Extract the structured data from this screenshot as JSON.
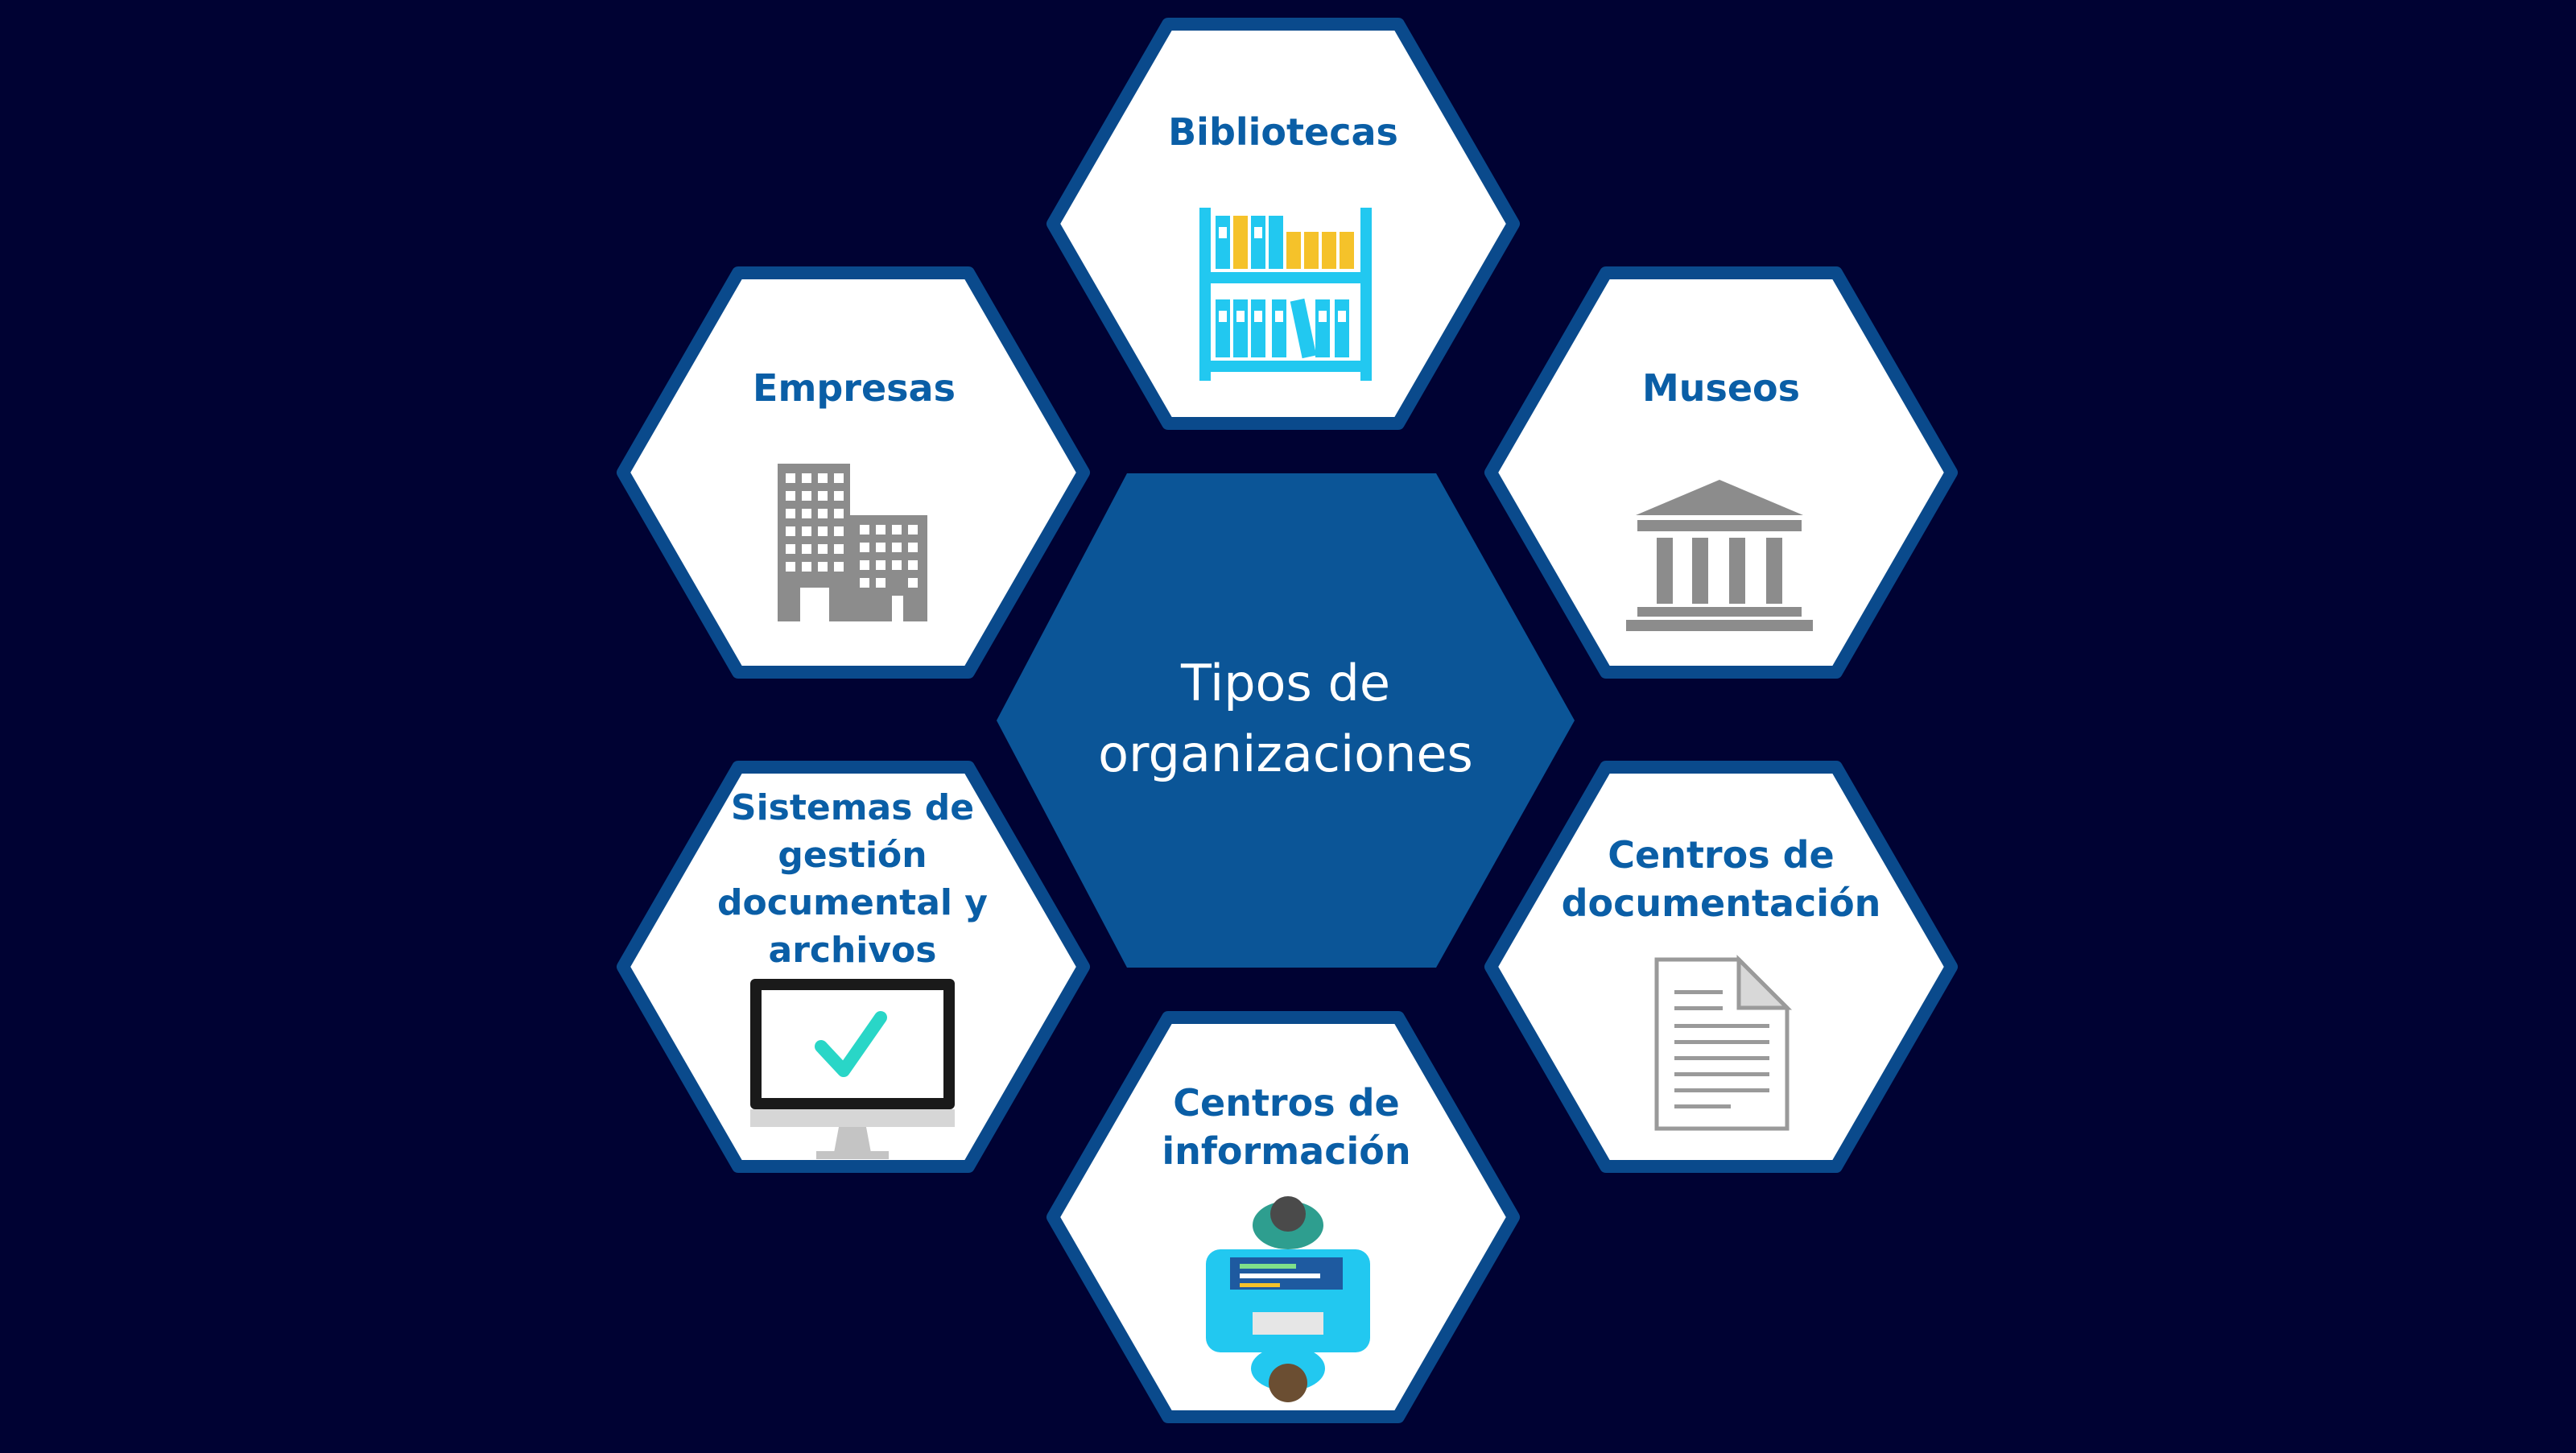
{
  "colors": {
    "background": "#000233",
    "hex_fill": "#ffffff",
    "hex_border": "#0a4a8c",
    "center_fill": "#0b5597",
    "label_text": "#0a5ea6",
    "center_text": "#ffffff",
    "icon_gray": "#8c8c8c",
    "icon_cyan": "#22c8f0",
    "icon_yellow": "#f5c22a",
    "icon_teal": "#29d6c7"
  },
  "center": {
    "line1": "Tipos de",
    "line2": "organizaciones"
  },
  "nodes": {
    "bibliotecas": {
      "label_lines": [
        "Bibliotecas"
      ],
      "icon": "bookshelf-icon"
    },
    "museos": {
      "label_lines": [
        "Museos"
      ],
      "icon": "museum-icon"
    },
    "centros_documentacion": {
      "label_lines": [
        "Centros de",
        "documentación"
      ],
      "icon": "document-icon"
    },
    "centros_informacion": {
      "label_lines": [
        "Centros de",
        "información"
      ],
      "icon": "people-at-desk-icon"
    },
    "sistemas": {
      "label_lines": [
        "Sistemas de",
        "gestión",
        "documental y",
        "archivos"
      ],
      "icon": "monitor-checkmark-icon"
    },
    "empresas": {
      "label_lines": [
        "Empresas"
      ],
      "icon": "office-building-icon"
    }
  }
}
